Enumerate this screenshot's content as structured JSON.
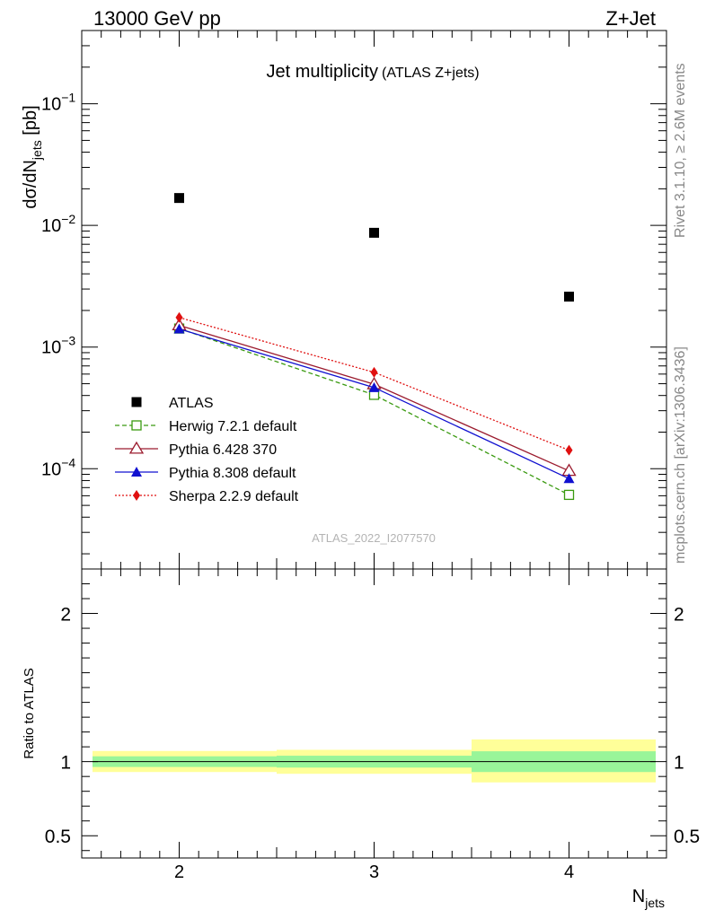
{
  "header": {
    "energy_label": "13000 GeV pp",
    "process_label": "Z+Jet"
  },
  "side_notes": {
    "rivet": "Rivet 3.1.10, ≥ 2.6M events",
    "mcplots": "mcplots.cern.ch [arXiv:1306.3436]"
  },
  "colors": {
    "ATLAS": "#000000",
    "Herwig": "#3a9a10",
    "Pythia6": "#9b1b2e",
    "Pythia8": "#1010d0",
    "Sherpa": "#e01010",
    "band_inner": "#99f599",
    "band_outer": "#ffff99"
  },
  "chart_data": [
    {
      "type": "line",
      "title": "Jet multiplicity",
      "subtitle": "(ATLAS Z+jets)",
      "ylabel_main": "dσ/dN",
      "ylabel_sub": "jets",
      "ylabel_unit": " [pb]",
      "yscale": "log",
      "ylim": [
        1.5e-05,
        0.4
      ],
      "xlim": [
        1.5,
        4.5
      ],
      "y_ticks": [
        {
          "v": 0.1,
          "base": "10",
          "exp": "−1"
        },
        {
          "v": 0.01,
          "base": "10",
          "exp": "−2"
        },
        {
          "v": 0.001,
          "base": "10",
          "exp": "−3"
        },
        {
          "v": 0.0001,
          "base": "10",
          "exp": "−4"
        }
      ],
      "analysis_id": "ATLAS_2022_I2077570",
      "series": [
        {
          "name": "ATLAS",
          "key": "ATLAS",
          "style": "data",
          "x": [
            2,
            3,
            4
          ],
          "y": [
            0.0168,
            0.0087,
            0.0026
          ]
        },
        {
          "name": "Herwig 7.2.1 default",
          "key": "Herwig",
          "style": "dashed",
          "marker": "open-square",
          "x": [
            2,
            3,
            4
          ],
          "y": [
            0.00142,
            0.000405,
            6.1e-05
          ]
        },
        {
          "name": "Pythia 6.428 370",
          "key": "Pythia6",
          "style": "solid",
          "marker": "open-triangle",
          "x": [
            2,
            3,
            4
          ],
          "y": [
            0.00151,
            0.000495,
            9.6e-05
          ]
        },
        {
          "name": "Pythia 8.308 default",
          "key": "Pythia8",
          "style": "solid",
          "marker": "filled-triangle",
          "x": [
            2,
            3,
            4
          ],
          "y": [
            0.00141,
            0.000465,
            8.3e-05
          ]
        },
        {
          "name": "Sherpa 2.2.9 default",
          "key": "Sherpa",
          "style": "dotted",
          "marker": "filled-diamond",
          "x": [
            2,
            3,
            4
          ],
          "y": [
            0.00175,
            0.00062,
            0.000142
          ]
        }
      ]
    },
    {
      "type": "area",
      "ylabel": "Ratio to ATLAS",
      "xlabel_main": "N",
      "xlabel_sub": "jets",
      "ylim": [
        0.35,
        2.3
      ],
      "y_ticks": [
        2,
        1,
        0.5
      ],
      "x_ticks": [
        2,
        3,
        4
      ],
      "bands": [
        {
          "x_low": 1.5,
          "x_high": 2.5,
          "inner": [
            0.964,
            1.036
          ],
          "outer": [
            0.93,
            1.072
          ]
        },
        {
          "x_low": 2.5,
          "x_high": 3.5,
          "inner": [
            0.96,
            1.04
          ],
          "outer": [
            0.918,
            1.08
          ]
        },
        {
          "x_low": 3.5,
          "x_high": 4.5,
          "inner": [
            0.93,
            1.07
          ],
          "outer": [
            0.86,
            1.15
          ]
        }
      ]
    }
  ]
}
